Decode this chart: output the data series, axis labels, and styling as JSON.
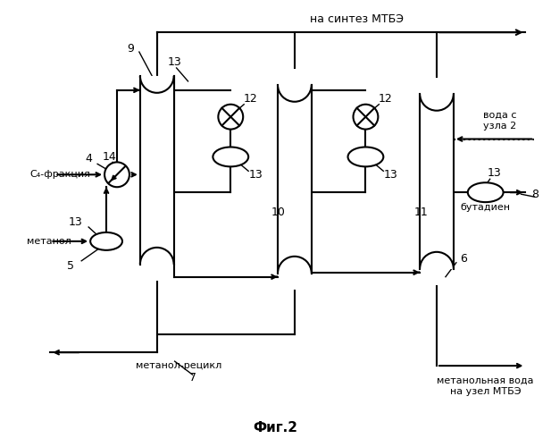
{
  "title": "Фиг.2",
  "background_color": "#ffffff",
  "line_color": "#000000",
  "labels": {
    "top_arrow": "на синтез МТБЭ",
    "c4": "С₄-фракция",
    "methanol": "метанол",
    "recycle": "метанол-рецикл",
    "water": "вода с\nузла 2",
    "butadiene": "бутадиен",
    "methanol_water": "метанольная вода\nна узел МТБЭ",
    "n4": "4",
    "n5": "5",
    "n6": "6",
    "n7": "7",
    "n8": "8",
    "n9": "9",
    "n10": "10",
    "n11": "11",
    "n12a": "12",
    "n12b": "12",
    "n13a": "13",
    "n13b": "13",
    "n13c": "13",
    "n13d": "13",
    "n14": "14"
  }
}
